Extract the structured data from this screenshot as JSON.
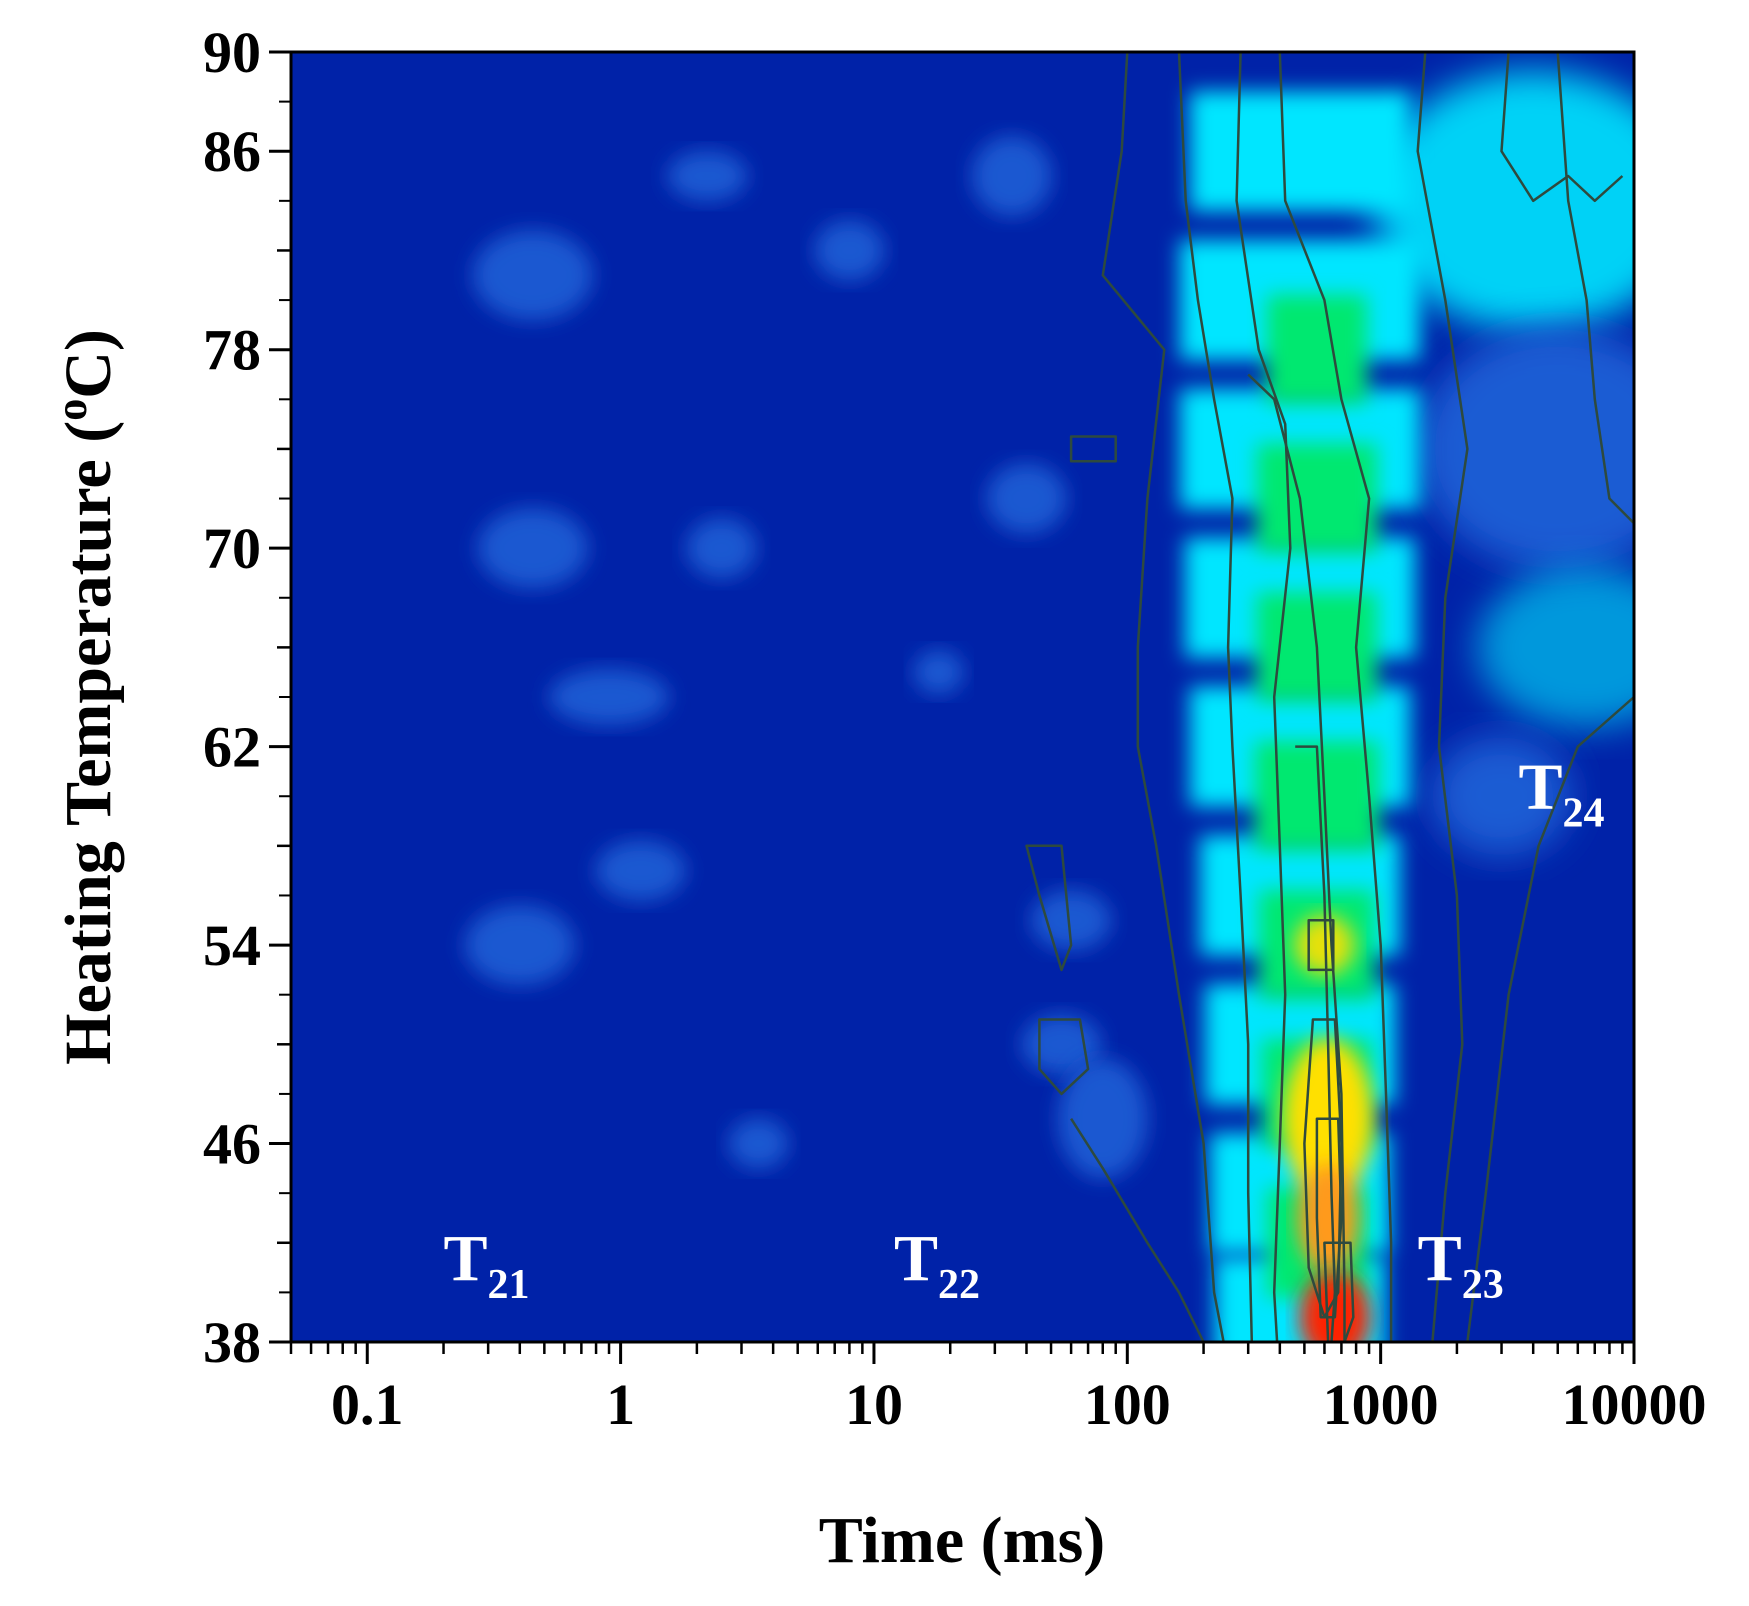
{
  "chart_data": {
    "type": "heatmap",
    "title": "",
    "xlabel": "Time (ms)",
    "ylabel_main": "Heating Temperature (",
    "ylabel_sup": "o",
    "ylabel_end": "C)",
    "x_scale": "log",
    "xlim": [
      0.05,
      10000
    ],
    "ylim": [
      38,
      90
    ],
    "x_ticks": [
      0.1,
      1,
      10,
      100,
      1000,
      10000
    ],
    "x_tick_labels": [
      "0.1",
      "1",
      "10",
      "100",
      "1000",
      "10000"
    ],
    "y_ticks": [
      38,
      46,
      54,
      62,
      70,
      78,
      86,
      90
    ],
    "y_tick_labels": [
      "38",
      "46",
      "54",
      "62",
      "70",
      "78",
      "86",
      "90"
    ],
    "colorscale": [
      "#0022a8",
      "#1e62d8",
      "#00e6ff",
      "#00e870",
      "#ffe000",
      "#ff2400"
    ],
    "peaks": [
      {
        "name": "T",
        "sub": "21",
        "x_ms": 0.2,
        "y_temp": 40.5
      },
      {
        "name": "T",
        "sub": "22",
        "x_ms": 12,
        "y_temp": 40.5
      },
      {
        "name": "T",
        "sub": "23",
        "x_ms": 1400,
        "y_temp": 40.5
      },
      {
        "name": "T",
        "sub": "24",
        "x_ms": 3500,
        "y_temp": 59.5
      }
    ],
    "bands": [
      {
        "name": "T23 main band",
        "x_ms_center": 640,
        "y_from": 38,
        "y_to": 90,
        "max_intensity": 1.0,
        "color_at_peak": "#ff2400"
      },
      {
        "name": "T24 band",
        "x_ms_center": 4500,
        "y_from": 62,
        "y_to": 90,
        "max_intensity": 0.5,
        "color_at_peak": "#00e6ff"
      }
    ]
  }
}
